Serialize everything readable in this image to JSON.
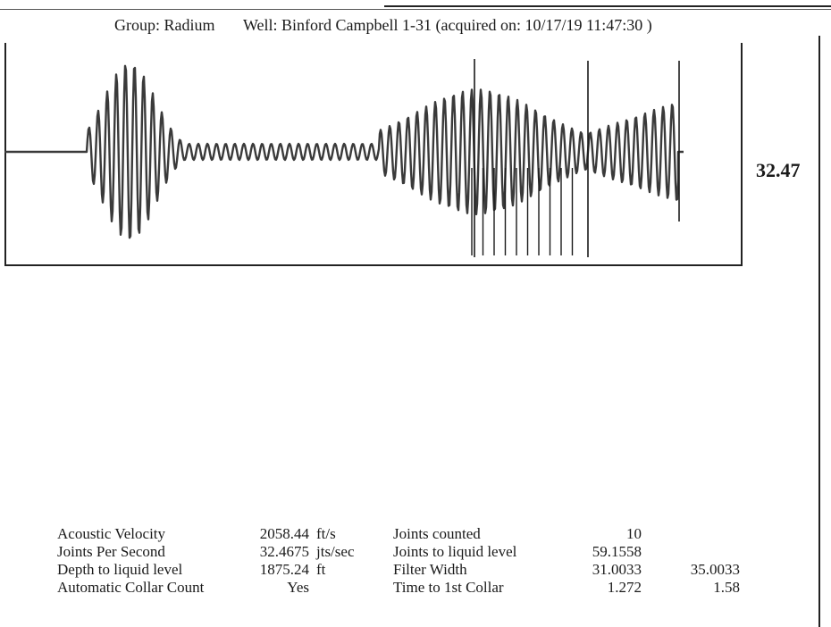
{
  "header": {
    "group": "Group: Radium",
    "well": "Well: Binford Campbell 1-31 (acquired on: 10/17/19 11:47:30 )"
  },
  "waveform": {
    "joints_per_second_label": "32.47",
    "trace_color": "#3a3a3a",
    "marker_color": "#1a1a1a",
    "collar_markers_count": 10
  },
  "params": {
    "rows": [
      {
        "label1": "Acoustic Velocity",
        "value1": "2058.44",
        "unit1": "ft/s",
        "label2": "Joints counted",
        "value2": "10",
        "value3": ""
      },
      {
        "label1": "Joints Per Second",
        "value1": "32.4675",
        "unit1": "jts/sec",
        "label2": "Joints to liquid level",
        "value2": "59.1558",
        "value3": ""
      },
      {
        "label1": "Depth to liquid level",
        "value1": "1875.24",
        "unit1": "ft",
        "label2": "Filter Width",
        "value2": "31.0033",
        "value3": "35.0033"
      },
      {
        "label1": "Automatic Collar Count",
        "value1": "Yes",
        "unit1": "",
        "label2": "Time to 1st Collar",
        "value2": "1.272",
        "value3": "1.58"
      }
    ]
  }
}
